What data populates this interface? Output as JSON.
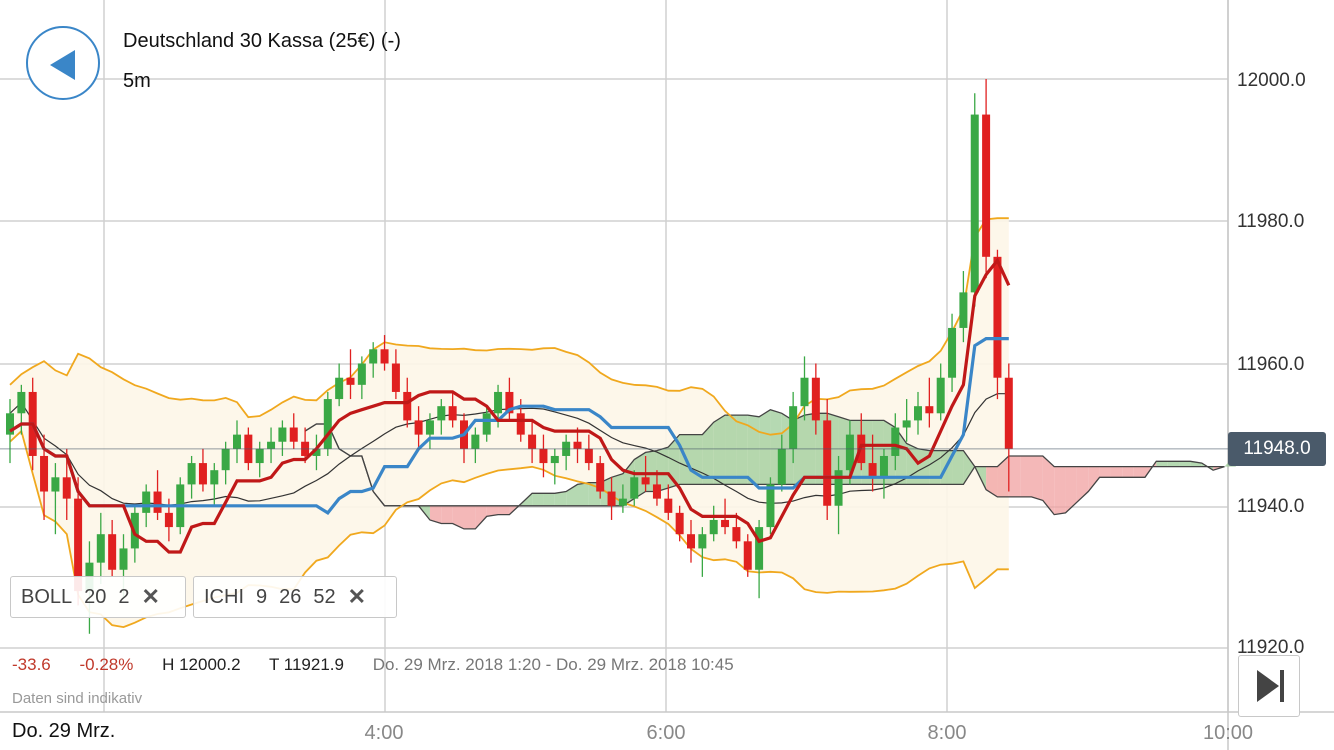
{
  "header": {
    "title": "Deutschland 30 Kassa (25€) (-)",
    "interval": "5m"
  },
  "indicators": [
    {
      "name": "BOLL",
      "params": [
        "20",
        "2"
      ]
    },
    {
      "name": "ICHI",
      "params": [
        "9",
        "26",
        "52"
      ]
    }
  ],
  "stats": {
    "change": "-33.6",
    "change_pct": "-0.28%",
    "high": "H 12000.2",
    "low": "T 11921.9",
    "range": "Do. 29 Mrz. 2018 1:20 - Do. 29 Mrz. 2018 10:45"
  },
  "disclaimer": "Daten sind indikativ",
  "date_label": "Do. 29 Mrz.",
  "x_ticks": [
    "4:00",
    "6:00",
    "8:00",
    "10:00"
  ],
  "y_ticks": [
    "12000.0",
    "11980.0",
    "11960.0",
    "11940.0",
    "11920.0"
  ],
  "current_price": "11948.0",
  "colors": {
    "up": "#3aa845",
    "down": "#e02020",
    "doji": "#222222",
    "bollinger": "#f0a81e",
    "bollinger_fill": "#fdf6e8",
    "tenkan": "#3a86c8",
    "kijun": "#c01818",
    "cloud_bull": "#9ccc98",
    "cloud_bear": "#f0a0a0",
    "grid": "#d0d0d0",
    "accent": "#3a86c8"
  },
  "chart_data": {
    "type": "candlestick",
    "x_start": "1:20",
    "x_end": "10:45",
    "interval_minutes": 5,
    "ylim": [
      11918,
      12010
    ],
    "last_price": 11948.0,
    "candles": [
      [
        11950,
        11955,
        11946,
        11953
      ],
      [
        11953,
        11957,
        11950,
        11956
      ],
      [
        11956,
        11958,
        11945,
        11947
      ],
      [
        11947,
        11950,
        11938,
        11942
      ],
      [
        11942,
        11946,
        11936,
        11944
      ],
      [
        11944,
        11948,
        11938,
        11941
      ],
      [
        11941,
        11944,
        11926,
        11928
      ],
      [
        11928,
        11935,
        11922,
        11932
      ],
      [
        11932,
        11939,
        11929,
        11936
      ],
      [
        11936,
        11938,
        11930,
        11931
      ],
      [
        11931,
        11936,
        11927,
        11934
      ],
      [
        11934,
        11940,
        11932,
        11939
      ],
      [
        11939,
        11943,
        11937,
        11942
      ],
      [
        11942,
        11945,
        11938,
        11939
      ],
      [
        11939,
        11941,
        11935,
        11937
      ],
      [
        11937,
        11944,
        11936,
        11943
      ],
      [
        11943,
        11947,
        11941,
        11946
      ],
      [
        11946,
        11948,
        11942,
        11943
      ],
      [
        11943,
        11946,
        11940,
        11945
      ],
      [
        11945,
        11949,
        11943,
        11948
      ],
      [
        11948,
        11952,
        11946,
        11950
      ],
      [
        11950,
        11951,
        11945,
        11946
      ],
      [
        11946,
        11949,
        11944,
        11948
      ],
      [
        11948,
        11951,
        11946,
        11949
      ],
      [
        11949,
        11952,
        11947,
        11951
      ],
      [
        11951,
        11953,
        11948,
        11949
      ],
      [
        11949,
        11951,
        11946,
        11947
      ],
      [
        11947,
        11950,
        11945,
        11948
      ],
      [
        11948,
        11956,
        11947,
        11955
      ],
      [
        11955,
        11960,
        11954,
        11958
      ],
      [
        11958,
        11962,
        11955,
        11957
      ],
      [
        11957,
        11961,
        11955,
        11960
      ],
      [
        11960,
        11963,
        11958,
        11962
      ],
      [
        11962,
        11964,
        11959,
        11960
      ],
      [
        11960,
        11962,
        11955,
        11956
      ],
      [
        11956,
        11958,
        11951,
        11952
      ],
      [
        11952,
        11954,
        11948,
        11950
      ],
      [
        11950,
        11953,
        11948,
        11952
      ],
      [
        11952,
        11955,
        11950,
        11954
      ],
      [
        11954,
        11956,
        11951,
        11952
      ],
      [
        11952,
        11953,
        11946,
        11948
      ],
      [
        11948,
        11951,
        11946,
        11950
      ],
      [
        11950,
        11954,
        11949,
        11953
      ],
      [
        11953,
        11957,
        11951,
        11956
      ],
      [
        11956,
        11958,
        11952,
        11953
      ],
      [
        11953,
        11955,
        11949,
        11950
      ],
      [
        11950,
        11952,
        11946,
        11948
      ],
      [
        11948,
        11950,
        11944,
        11946
      ],
      [
        11946,
        11948,
        11943,
        11947
      ],
      [
        11947,
        11950,
        11945,
        11949
      ],
      [
        11949,
        11951,
        11946,
        11948
      ],
      [
        11948,
        11950,
        11945,
        11946
      ],
      [
        11946,
        11947,
        11941,
        11942
      ],
      [
        11942,
        11944,
        11938,
        11940
      ],
      [
        11940,
        11943,
        11939,
        11941
      ],
      [
        11941,
        11945,
        11940,
        11944
      ],
      [
        11944,
        11947,
        11942,
        11943
      ],
      [
        11943,
        11945,
        11940,
        11941
      ],
      [
        11941,
        11943,
        11938,
        11939
      ],
      [
        11939,
        11940,
        11935,
        11936
      ],
      [
        11936,
        11938,
        11932,
        11934
      ],
      [
        11934,
        11937,
        11930,
        11936
      ],
      [
        11936,
        11940,
        11935,
        11938
      ],
      [
        11938,
        11941,
        11936,
        11937
      ],
      [
        11937,
        11939,
        11934,
        11935
      ],
      [
        11935,
        11936,
        11930,
        11931
      ],
      [
        11931,
        11938,
        11927,
        11937
      ],
      [
        11937,
        11944,
        11936,
        11943
      ],
      [
        11943,
        11950,
        11942,
        11948
      ],
      [
        11948,
        11956,
        11946,
        11954
      ],
      [
        11954,
        11961,
        11952,
        11958
      ],
      [
        11958,
        11960,
        11950,
        11952
      ],
      [
        11952,
        11955,
        11938,
        11940
      ],
      [
        11940,
        11947,
        11936,
        11945
      ],
      [
        11945,
        11952,
        11943,
        11950
      ],
      [
        11950,
        11953,
        11945,
        11946
      ],
      [
        11946,
        11950,
        11942,
        11944
      ],
      [
        11944,
        11948,
        11941,
        11947
      ],
      [
        11947,
        11953,
        11945,
        11951
      ],
      [
        11951,
        11955,
        11949,
        11952
      ],
      [
        11952,
        11956,
        11950,
        11954
      ],
      [
        11954,
        11958,
        11951,
        11953
      ],
      [
        11953,
        11960,
        11952,
        11958
      ],
      [
        11958,
        11967,
        11956,
        11965
      ],
      [
        11965,
        11973,
        11963,
        11970
      ],
      [
        11970,
        11998,
        11968,
        11995
      ],
      [
        11995,
        12000,
        11972,
        11975
      ],
      [
        11975,
        11976,
        11955,
        11958
      ],
      [
        11958,
        11960,
        11942,
        11948
      ]
    ],
    "bollinger": {
      "period": 20,
      "stddev": 2
    },
    "ichimoku": {
      "tenkan": 9,
      "kijun": 26,
      "senkou_b": 52
    }
  }
}
